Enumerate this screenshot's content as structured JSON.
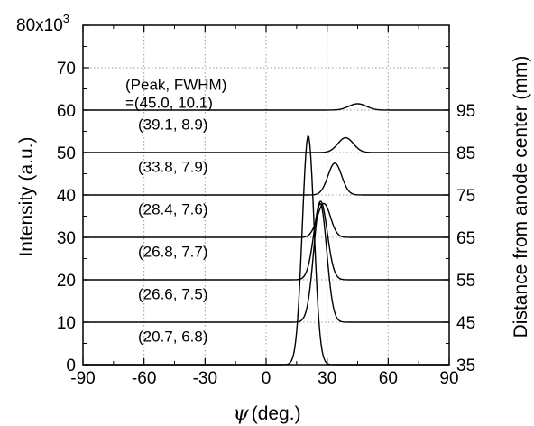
{
  "chart_data": {
    "type": "line",
    "title": "",
    "xlabel_symbol": "ψ",
    "xlabel_unit": "(deg.)",
    "ylabel": "Intensity (a.u.)",
    "y2label": "Distance from anode center (mm)",
    "xlim": [
      -90,
      90
    ],
    "ylim": [
      0,
      80000
    ],
    "y_multiplier_label": "80x10",
    "y_multiplier_exp": "3",
    "xticks": [
      "-90",
      "-60",
      "-30",
      "0",
      "30",
      "60",
      "90"
    ],
    "yticks": [
      "0",
      "10",
      "20",
      "30",
      "40",
      "50",
      "60",
      "70"
    ],
    "y2ticks": [
      "35",
      "45",
      "55",
      "65",
      "75",
      "85",
      "95"
    ],
    "grid": true,
    "series": [
      {
        "distance_mm": "35",
        "baseline": 0,
        "peak": 20.7,
        "fwhm": 6.8,
        "amplitude": 54000,
        "label": "(20.7, 6.8)"
      },
      {
        "distance_mm": "45",
        "baseline": 10000,
        "peak": 26.6,
        "fwhm": 7.5,
        "amplitude": 28000,
        "label": "(26.6, 7.5)"
      },
      {
        "distance_mm": "55",
        "baseline": 20000,
        "peak": 26.8,
        "fwhm": 7.7,
        "amplitude": 18500,
        "label": "(26.8, 7.7)"
      },
      {
        "distance_mm": "65",
        "baseline": 30000,
        "peak": 28.4,
        "fwhm": 7.6,
        "amplitude": 8000,
        "label": "(28.4, 7.6)"
      },
      {
        "distance_mm": "75",
        "baseline": 40000,
        "peak": 33.8,
        "fwhm": 7.9,
        "amplitude": 7500,
        "label": "(33.8, 7.9)"
      },
      {
        "distance_mm": "85",
        "baseline": 50000,
        "peak": 39.1,
        "fwhm": 8.9,
        "amplitude": 3500,
        "label": "(39.1, 8.9)"
      },
      {
        "distance_mm": "95",
        "baseline": 60000,
        "peak": 45.0,
        "fwhm": 10.1,
        "amplitude": 1500,
        "label": "=(45.0, 10.1)"
      }
    ],
    "annotation_header": "(Peak, FWHM)"
  }
}
